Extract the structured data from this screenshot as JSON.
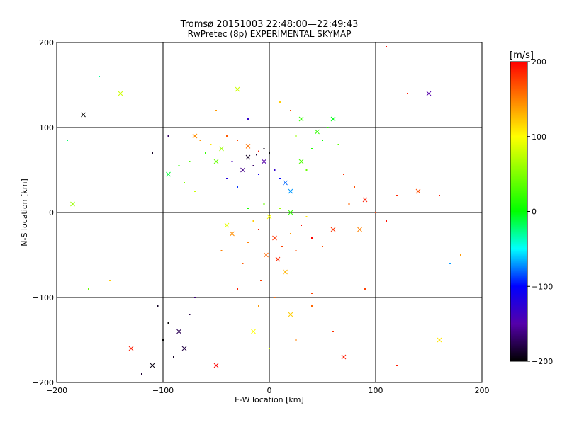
{
  "chart_data": {
    "type": "scatter",
    "title": "Tromsø 20151003 22:48:00—22:49:43",
    "subtitle": "RwPretec (8p) EXPERIMENTAL SKYMAP",
    "xlabel": "E-W location [km]",
    "ylabel": "N-S location [km]",
    "xlim": [
      -200,
      200
    ],
    "ylim": [
      -200,
      200
    ],
    "x_ticks": [
      "−200",
      "−100",
      "0",
      "100",
      "200"
    ],
    "y_ticks": [
      "−200",
      "−100",
      "0",
      "100",
      "200"
    ],
    "grid": true,
    "colorbar": {
      "label": "[m/s]",
      "min": -200,
      "max": 200,
      "ticks": [
        "200",
        "100",
        "0",
        "−100",
        "−200"
      ]
    },
    "marker_types": [
      "dot",
      "cross"
    ],
    "series": [
      {
        "values": [
          [
            5,
            -30,
            180
          ],
          [
            -10,
            -20,
            190
          ],
          [
            12,
            -40,
            175
          ],
          [
            -3,
            -50,
            160
          ],
          [
            20,
            -25,
            140
          ],
          [
            -20,
            -35,
            150
          ],
          [
            8,
            -55,
            185
          ],
          [
            -15,
            -10,
            120
          ],
          [
            25,
            -45,
            170
          ],
          [
            0,
            -5,
            100
          ],
          [
            30,
            -15,
            195
          ],
          [
            -25,
            -60,
            165
          ],
          [
            15,
            -70,
            130
          ],
          [
            -8,
            -80,
            175
          ],
          [
            40,
            -30,
            200
          ],
          [
            -35,
            -25,
            145
          ],
          [
            10,
            5,
            60
          ],
          [
            -5,
            10,
            40
          ],
          [
            20,
            0,
            20
          ],
          [
            -20,
            5,
            10
          ],
          [
            35,
            -5,
            110
          ],
          [
            -40,
            -15,
            90
          ],
          [
            50,
            -40,
            170
          ],
          [
            -45,
            -45,
            150
          ],
          [
            60,
            -20,
            180
          ],
          [
            5,
            -100,
            160
          ],
          [
            -10,
            -110,
            140
          ],
          [
            20,
            -120,
            120
          ],
          [
            -30,
            -90,
            190
          ],
          [
            40,
            -95,
            175
          ],
          [
            -5,
            60,
            -150
          ],
          [
            -15,
            55,
            -170
          ],
          [
            0,
            70,
            -200
          ],
          [
            -20,
            65,
            -190
          ],
          [
            5,
            50,
            -130
          ],
          [
            -10,
            45,
            -110
          ],
          [
            -25,
            50,
            -160
          ],
          [
            -35,
            60,
            -140
          ],
          [
            10,
            40,
            -100
          ],
          [
            15,
            35,
            -80
          ],
          [
            -40,
            40,
            -120
          ],
          [
            -30,
            30,
            -90
          ],
          [
            20,
            25,
            -70
          ],
          [
            -5,
            75,
            -195
          ],
          [
            -12,
            68,
            -185
          ],
          [
            -45,
            75,
            60
          ],
          [
            -55,
            80,
            110
          ],
          [
            -60,
            70,
            20
          ],
          [
            -50,
            60,
            40
          ],
          [
            -65,
            85,
            140
          ],
          [
            -30,
            85,
            170
          ],
          [
            -20,
            78,
            155
          ],
          [
            -10,
            72,
            190
          ],
          [
            -40,
            90,
            165
          ],
          [
            -70,
            90,
            145
          ],
          [
            -75,
            60,
            30
          ],
          [
            -85,
            55,
            20
          ],
          [
            -95,
            45,
            -10
          ],
          [
            -80,
            35,
            50
          ],
          [
            -70,
            25,
            80
          ],
          [
            30,
            60,
            30
          ],
          [
            40,
            75,
            10
          ],
          [
            50,
            85,
            0
          ],
          [
            45,
            95,
            20
          ],
          [
            35,
            50,
            40
          ],
          [
            55,
            100,
            15
          ],
          [
            60,
            110,
            -5
          ],
          [
            25,
            90,
            60
          ],
          [
            65,
            80,
            35
          ],
          [
            30,
            110,
            20
          ],
          [
            70,
            45,
            180
          ],
          [
            80,
            30,
            170
          ],
          [
            90,
            15,
            190
          ],
          [
            100,
            0,
            175
          ],
          [
            75,
            10,
            160
          ],
          [
            85,
            -20,
            150
          ],
          [
            110,
            -10,
            195
          ],
          [
            120,
            20,
            185
          ],
          [
            140,
            25,
            170
          ],
          [
            160,
            20,
            190
          ],
          [
            -100,
            -150,
            -200
          ],
          [
            -110,
            -180,
            -195
          ],
          [
            -120,
            -190,
            -185
          ],
          [
            -90,
            -170,
            -190
          ],
          [
            -80,
            -160,
            -180
          ],
          [
            -95,
            -130,
            -200
          ],
          [
            -105,
            -110,
            -190
          ],
          [
            -85,
            -140,
            -175
          ],
          [
            -70,
            -100,
            -165
          ],
          [
            -75,
            -120,
            -180
          ],
          [
            -130,
            -160,
            190
          ],
          [
            -150,
            -80,
            120
          ],
          [
            -170,
            -90,
            40
          ],
          [
            -185,
            10,
            60
          ],
          [
            -190,
            85,
            -20
          ],
          [
            -160,
            160,
            -30
          ],
          [
            -175,
            115,
            -200
          ],
          [
            -110,
            70,
            -190
          ],
          [
            -95,
            90,
            -170
          ],
          [
            -140,
            140,
            80
          ],
          [
            110,
            195,
            195
          ],
          [
            130,
            140,
            190
          ],
          [
            150,
            140,
            -150
          ],
          [
            170,
            -60,
            -70
          ],
          [
            180,
            -50,
            140
          ],
          [
            160,
            -150,
            110
          ],
          [
            120,
            -180,
            190
          ],
          [
            90,
            -90,
            175
          ],
          [
            -50,
            -180,
            200
          ],
          [
            0,
            -160,
            85
          ],
          [
            25,
            -150,
            150
          ],
          [
            -15,
            -140,
            100
          ],
          [
            40,
            -110,
            160
          ],
          [
            60,
            -140,
            180
          ],
          [
            70,
            -170,
            190
          ],
          [
            10,
            130,
            120
          ],
          [
            -20,
            110,
            -130
          ],
          [
            -30,
            145,
            80
          ],
          [
            -50,
            120,
            140
          ],
          [
            20,
            120,
            170
          ]
        ]
      }
    ]
  }
}
